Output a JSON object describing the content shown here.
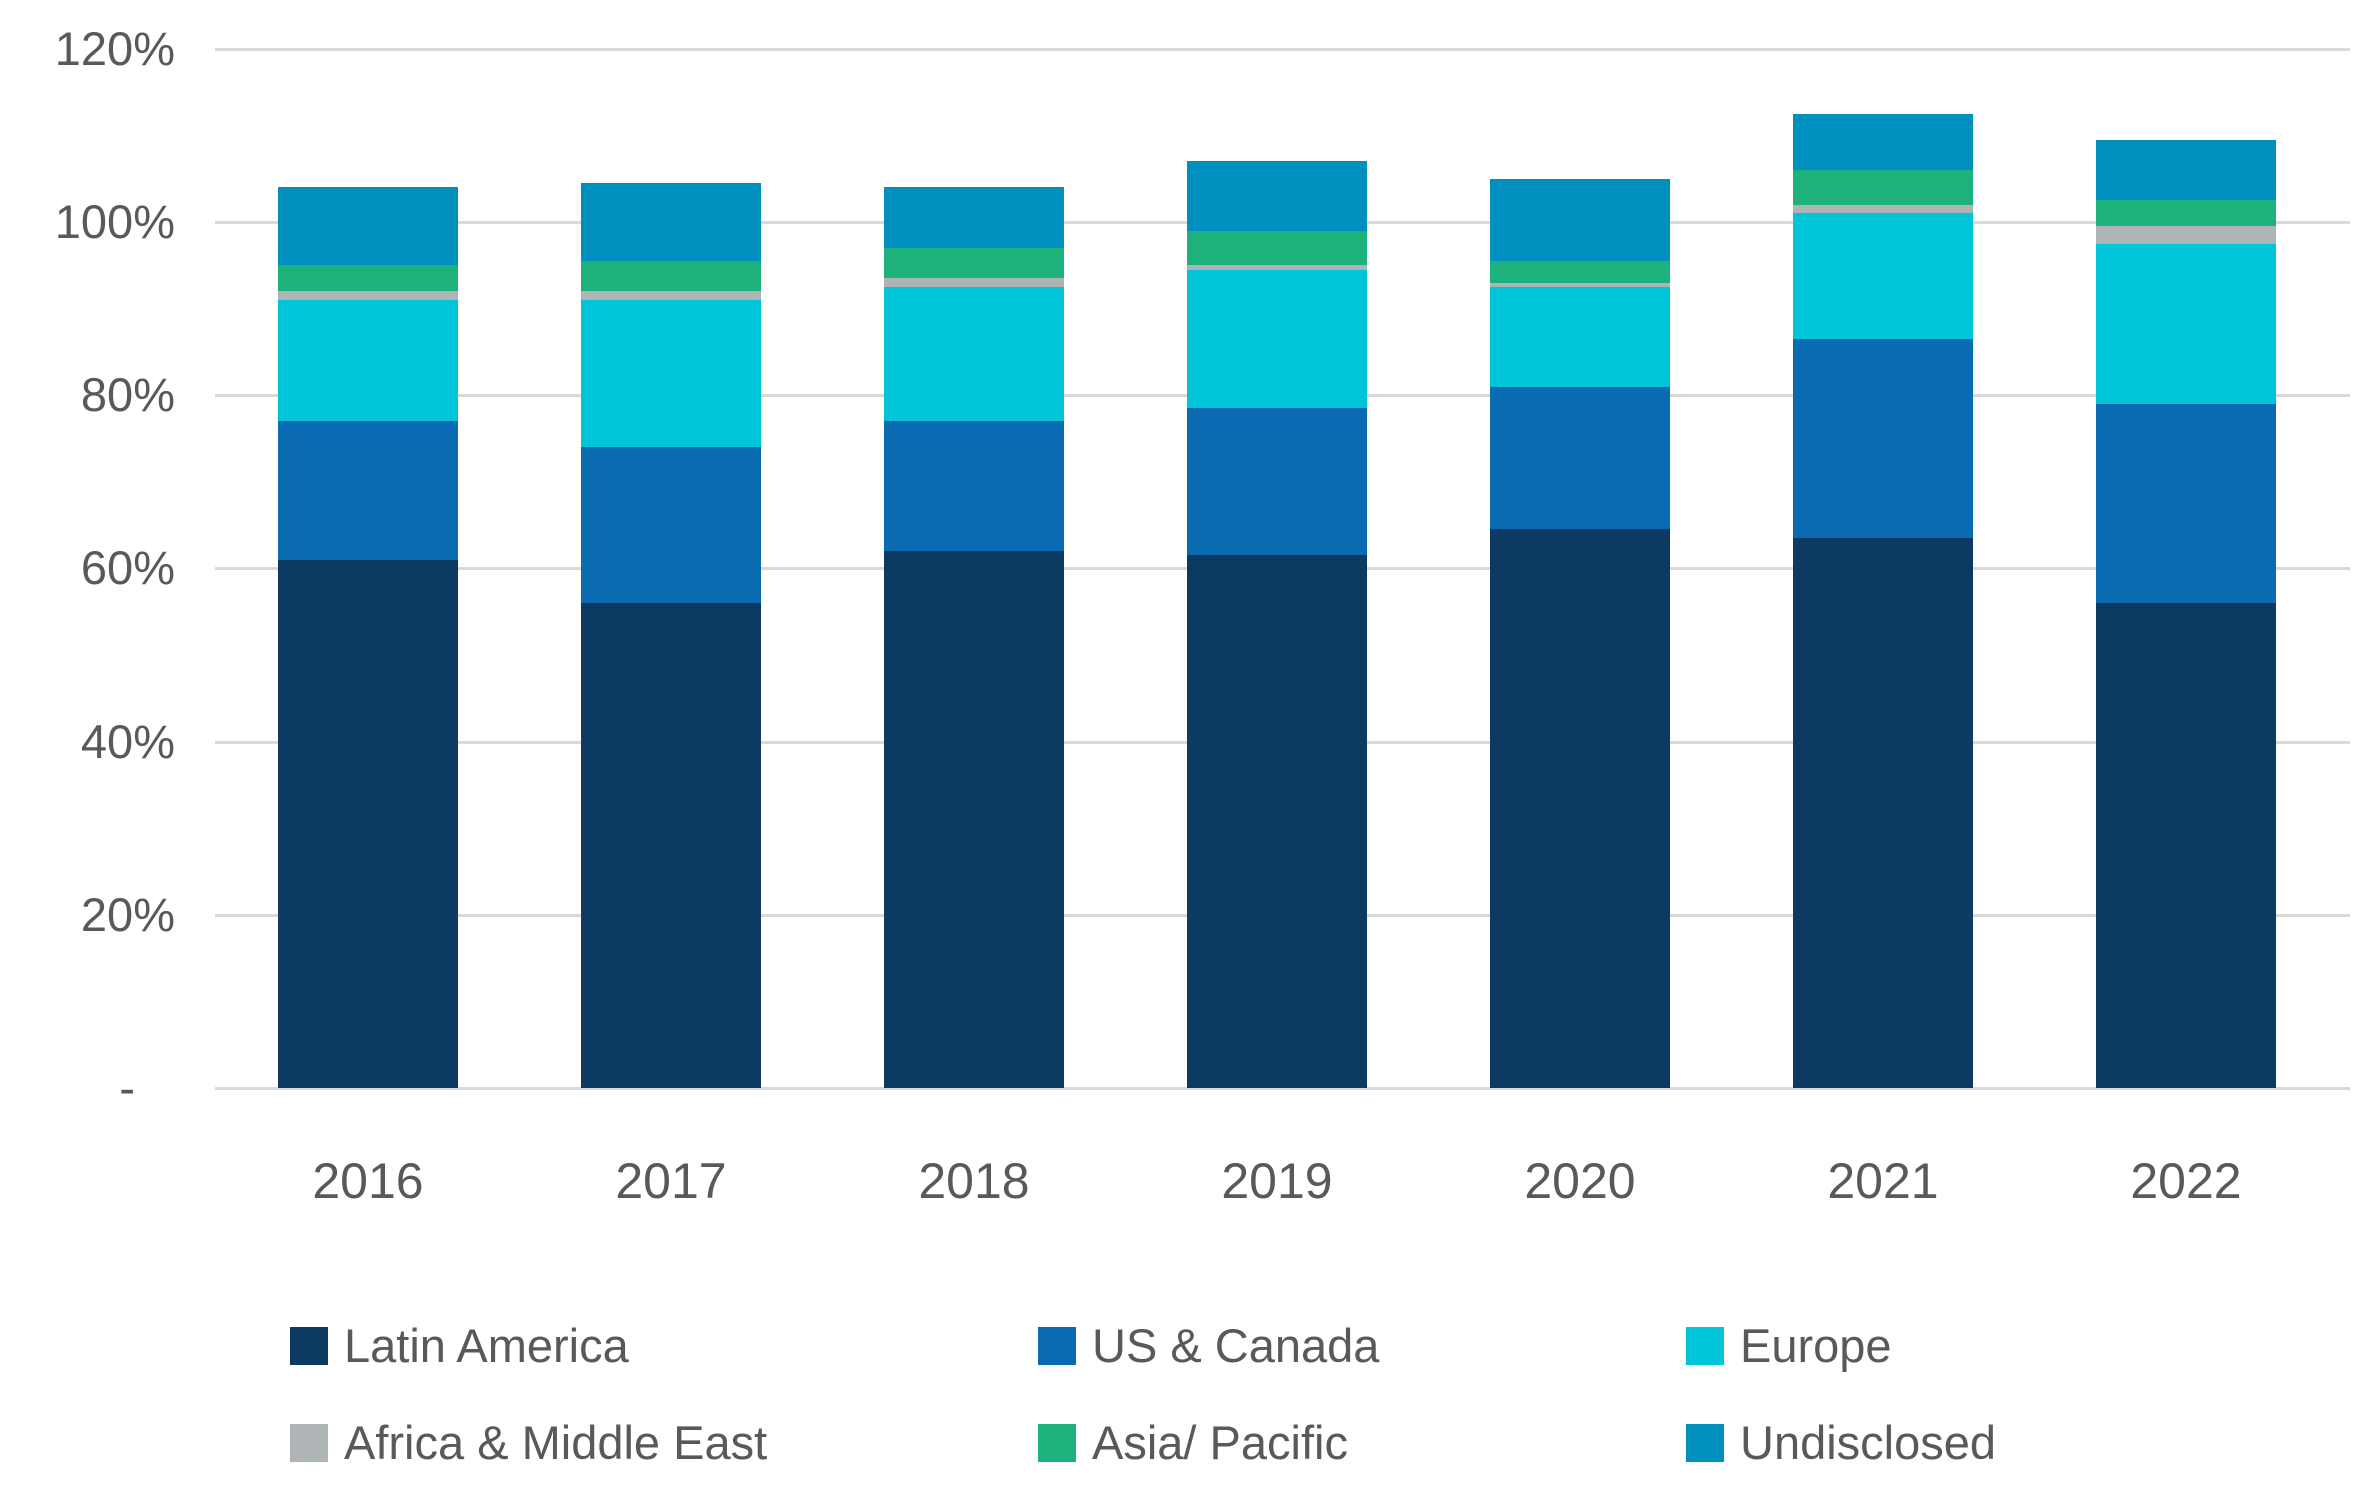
{
  "chart_data": {
    "type": "bar",
    "stacked": true,
    "title": "",
    "xlabel": "",
    "ylabel": "",
    "categories": [
      "2016",
      "2017",
      "2018",
      "2019",
      "2020",
      "2021",
      "2022"
    ],
    "series": [
      {
        "name": "Latin America",
        "color": "#0d3a62",
        "values": [
          61,
          56,
          62,
          61.5,
          64.5,
          63.5,
          56
        ]
      },
      {
        "name": "US & Canada",
        "color": "#0a6bb3",
        "values": [
          16,
          18,
          15,
          17,
          16.5,
          23,
          23
        ]
      },
      {
        "name": "Europe",
        "color": "#00c5d8",
        "values": [
          14,
          17,
          15.5,
          16,
          11.5,
          14.5,
          18.5
        ]
      },
      {
        "name": "Africa & Middle East",
        "color": "#aeb3b5",
        "values": [
          1,
          1,
          1,
          0.5,
          0.5,
          1,
          2
        ]
      },
      {
        "name": "Asia/ Pacific",
        "color": "#1db27c",
        "values": [
          3,
          3.5,
          3.5,
          4,
          2.5,
          4,
          3
        ]
      },
      {
        "name": "Undisclosed",
        "color": "#0090bf",
        "values": [
          9,
          9,
          7,
          8,
          9.5,
          6.5,
          7
        ]
      }
    ],
    "stack_totals": [
      104,
      104.5,
      104,
      107,
      105,
      112.5,
      109.5
    ],
    "y_axis": {
      "unit": "%",
      "min": 0,
      "max": 120,
      "tick_labels": [
        "120%",
        "100%",
        "80%",
        "60%",
        "40%",
        "20%",
        "-"
      ],
      "tick_values": [
        120,
        100,
        80,
        60,
        40,
        20,
        0
      ],
      "grid": true,
      "gridline_color": "#d9d9d9",
      "label_color": "#595959"
    },
    "legend_position": "bottom",
    "legend_rows": [
      [
        "Latin America",
        "US & Canada",
        "Europe"
      ],
      [
        "Africa & Middle East",
        "Asia/ Pacific",
        "Undisclosed"
      ]
    ]
  }
}
